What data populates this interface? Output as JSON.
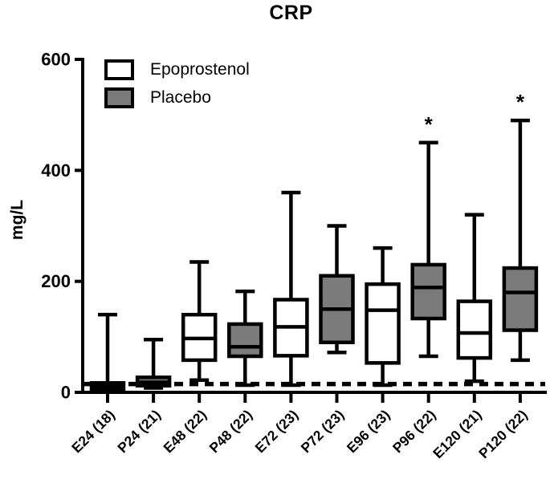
{
  "chart_data": {
    "type": "box",
    "title": "CRP",
    "ylabel": "mg/L",
    "ylim": [
      0,
      600
    ],
    "yticks": [
      0,
      200,
      400,
      600
    ],
    "reference_line": 15,
    "grid": false,
    "legend_position": "top-left-inside",
    "significance_marker": "*",
    "colors": {
      "epoprostenol_fill": "#ffffff",
      "placebo_fill": "#7b7b7b",
      "stroke": "#000000"
    },
    "legend": [
      {
        "label": "Epoprostenol",
        "fill": "#ffffff"
      },
      {
        "label": "Placebo",
        "fill": "#7b7b7b"
      }
    ],
    "categories": [
      "E24 (18)",
      "P24 (21)",
      "E48 (22)",
      "P48 (22)",
      "E72 (23)",
      "P72 (23)",
      "E96 (23)",
      "P96 (22)",
      "E120 (21)",
      "P120 (22)"
    ],
    "boxes": [
      {
        "label": "E24 (18)",
        "group": "Epoprostenol",
        "whisker_low": 5,
        "q1": 6,
        "median": 11,
        "q3": 17,
        "whisker_high": 140,
        "significant": false
      },
      {
        "label": "P24 (21)",
        "group": "Placebo",
        "whisker_low": 8,
        "q1": 12,
        "median": 18,
        "q3": 27,
        "whisker_high": 95,
        "significant": false
      },
      {
        "label": "E48 (22)",
        "group": "Epoprostenol",
        "whisker_low": 22,
        "q1": 58,
        "median": 97,
        "q3": 140,
        "whisker_high": 235,
        "significant": false
      },
      {
        "label": "P48 (22)",
        "group": "Placebo",
        "whisker_low": 13,
        "q1": 65,
        "median": 82,
        "q3": 123,
        "whisker_high": 182,
        "significant": false
      },
      {
        "label": "E72 (23)",
        "group": "Epoprostenol",
        "whisker_low": 13,
        "q1": 66,
        "median": 118,
        "q3": 167,
        "whisker_high": 360,
        "significant": false
      },
      {
        "label": "P72 (23)",
        "group": "Placebo",
        "whisker_low": 72,
        "q1": 90,
        "median": 150,
        "q3": 210,
        "whisker_high": 300,
        "significant": false
      },
      {
        "label": "E96 (23)",
        "group": "Epoprostenol",
        "whisker_low": 13,
        "q1": 53,
        "median": 148,
        "q3": 195,
        "whisker_high": 260,
        "significant": false
      },
      {
        "label": "P96 (22)",
        "group": "Placebo",
        "whisker_low": 65,
        "q1": 133,
        "median": 189,
        "q3": 230,
        "whisker_high": 450,
        "significant": true
      },
      {
        "label": "E120 (21)",
        "group": "Epoprostenol",
        "whisker_low": 20,
        "q1": 62,
        "median": 107,
        "q3": 164,
        "whisker_high": 320,
        "significant": false
      },
      {
        "label": "P120 (22)",
        "group": "Placebo",
        "whisker_low": 58,
        "q1": 112,
        "median": 180,
        "q3": 224,
        "whisker_high": 490,
        "significant": true
      }
    ]
  }
}
